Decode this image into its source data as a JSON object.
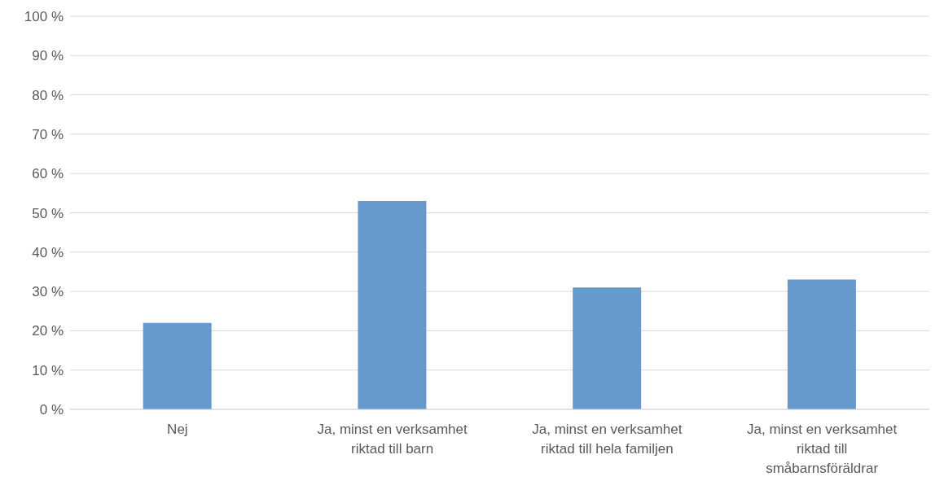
{
  "chart_data": {
    "type": "bar",
    "categories": [
      "Nej",
      "Ja, minst en verksamhet riktad till barn",
      "Ja, minst en verksamhet riktad till hela familjen",
      "Ja, minst en verksamhet riktad till småbarnsföräldrar"
    ],
    "values": [
      22,
      53,
      31,
      33
    ],
    "color": "#6699cc",
    "ylim": [
      0,
      100
    ],
    "yticks": [
      {
        "value": 0,
        "label": "0 %"
      },
      {
        "value": 10,
        "label": "10 %"
      },
      {
        "value": 20,
        "label": "20 %"
      },
      {
        "value": 30,
        "label": "30 %"
      },
      {
        "value": 40,
        "label": "40 %"
      },
      {
        "value": 50,
        "label": "50 %"
      },
      {
        "value": 60,
        "label": "60 %"
      },
      {
        "value": 70,
        "label": "70 %"
      },
      {
        "value": 80,
        "label": "80 %"
      },
      {
        "value": 90,
        "label": "90 %"
      },
      {
        "value": 100,
        "label": "100 %"
      }
    ],
    "grid": "y"
  }
}
